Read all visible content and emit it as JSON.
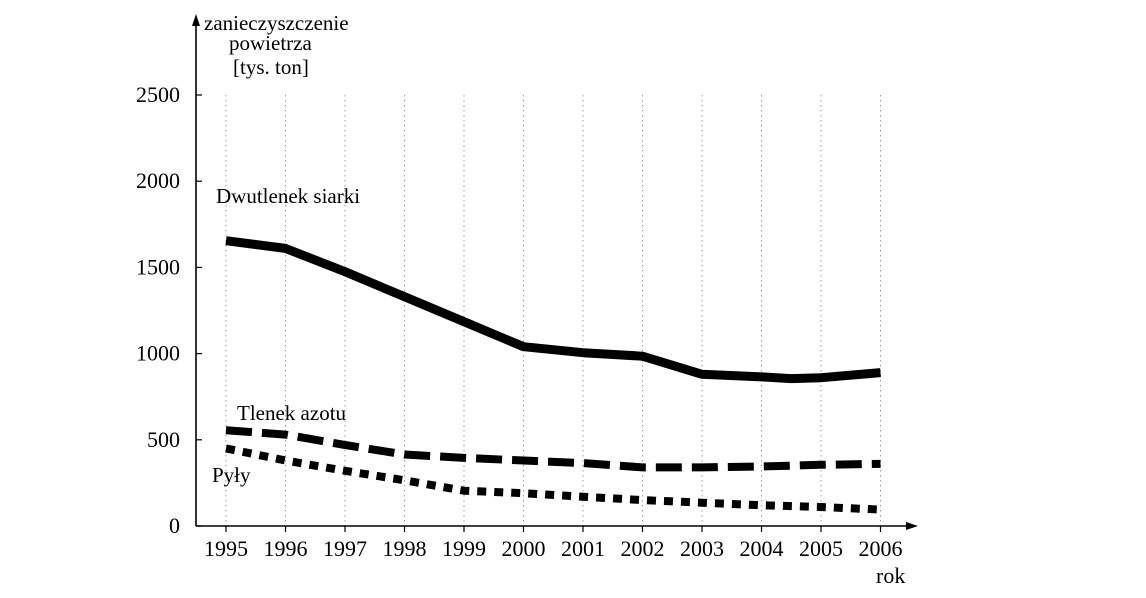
{
  "chart_data": {
    "type": "line",
    "ylabel_lines": [
      "zanieczyszczenie",
      "powietrza",
      "[tys. ton]"
    ],
    "xlabel": "rok",
    "x": [
      1995,
      1996,
      1997,
      1998,
      1999,
      2000,
      2001,
      2002,
      2003,
      2004,
      2005,
      2006
    ],
    "ylim": [
      0,
      2500
    ],
    "yticks": [
      0,
      500,
      1000,
      1500,
      2000,
      2500
    ],
    "grid": "vertical dotted",
    "series": [
      {
        "name": "Dwutlenek siarki",
        "style": "solid",
        "points": [
          [
            1995,
            1655
          ],
          [
            1996,
            1610
          ],
          [
            1997,
            1475
          ],
          [
            1998,
            1330
          ],
          [
            1999,
            1185
          ],
          [
            2000,
            1040
          ],
          [
            2001,
            1005
          ],
          [
            2002,
            985
          ],
          [
            2003,
            880
          ],
          [
            2004,
            865
          ],
          [
            2004.5,
            855
          ],
          [
            2005,
            860
          ],
          [
            2006,
            890
          ]
        ]
      },
      {
        "name": "Tlenek azotu",
        "style": "dashed",
        "points": [
          [
            1995,
            555
          ],
          [
            1996,
            530
          ],
          [
            1997,
            470
          ],
          [
            1998,
            415
          ],
          [
            1999,
            395
          ],
          [
            2000,
            380
          ],
          [
            2001,
            365
          ],
          [
            2002,
            340
          ],
          [
            2003,
            340
          ],
          [
            2004,
            345
          ],
          [
            2005,
            355
          ],
          [
            2006,
            360
          ]
        ]
      },
      {
        "name": "Pyły",
        "style": "dotted",
        "points": [
          [
            1995,
            450
          ],
          [
            1996,
            380
          ],
          [
            1997,
            320
          ],
          [
            1998,
            265
          ],
          [
            1999,
            205
          ],
          [
            2000,
            190
          ],
          [
            2001,
            170
          ],
          [
            2002,
            150
          ],
          [
            2003,
            135
          ],
          [
            2004,
            120
          ],
          [
            2005,
            110
          ],
          [
            2006,
            95
          ]
        ]
      }
    ]
  }
}
